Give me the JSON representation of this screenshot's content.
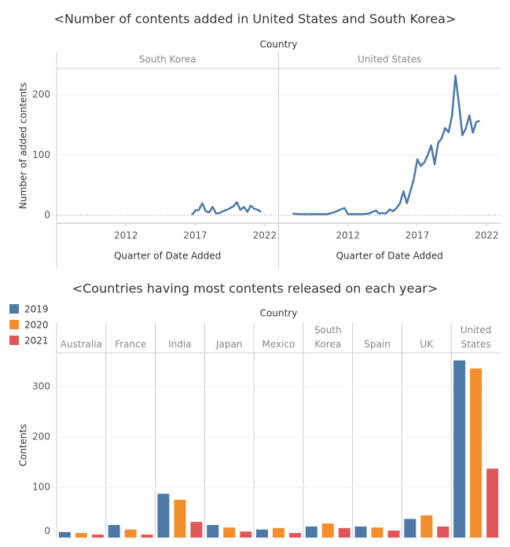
{
  "chart_data": [
    {
      "type": "line",
      "title": "<Number of contents added in United States and South Korea>",
      "facet_label": "Country",
      "x_label": "Quarter of Date Added",
      "y_label": "Number of added contents",
      "color": "#4e79a7",
      "xlim": [
        2007,
        2023
      ],
      "ylim": [
        -13,
        244
      ],
      "xticks": [
        2012,
        2017,
        2022
      ],
      "yticks": [
        0,
        100,
        200
      ],
      "panels": [
        {
          "name": "South Korea",
          "x": [
            2016.75,
            2017.0,
            2017.25,
            2017.5,
            2017.75,
            2018.0,
            2018.25,
            2018.5,
            2018.75,
            2019.0,
            2019.25,
            2019.5,
            2019.75,
            2020.0,
            2020.25,
            2020.5,
            2020.75,
            2021.0,
            2021.25,
            2021.5,
            2021.75
          ],
          "values": [
            1,
            8,
            9,
            20,
            7,
            5,
            14,
            3,
            4,
            7,
            9,
            12,
            15,
            22,
            9,
            14,
            6,
            16,
            11,
            9,
            6
          ]
        },
        {
          "name": "United States",
          "x": [
            2008.0,
            2008.5,
            2009.0,
            2009.5,
            2010.0,
            2010.5,
            2011.0,
            2011.5,
            2011.75,
            2012.0,
            2012.5,
            2013.0,
            2013.5,
            2014.0,
            2014.25,
            2014.5,
            2014.75,
            2015.0,
            2015.25,
            2015.5,
            2015.75,
            2016.0,
            2016.25,
            2016.5,
            2016.75,
            2017.0,
            2017.25,
            2017.5,
            2017.75,
            2018.0,
            2018.25,
            2018.5,
            2018.75,
            2019.0,
            2019.25,
            2019.5,
            2019.75,
            2020.0,
            2020.25,
            2020.5,
            2020.75,
            2021.0,
            2021.25,
            2021.5
          ],
          "values": [
            3,
            2,
            2,
            2,
            2,
            2,
            5,
            10,
            12,
            2,
            2,
            2,
            3,
            8,
            3,
            4,
            3,
            10,
            7,
            12,
            20,
            40,
            20,
            40,
            60,
            93,
            82,
            88,
            100,
            116,
            85,
            120,
            128,
            145,
            138,
            165,
            232,
            185,
            133,
            145,
            166,
            137,
            155,
            157
          ]
        }
      ]
    },
    {
      "type": "bar",
      "title": "<Countries having most contents released on each year>",
      "facet_label": "Country",
      "y_label": "Contents",
      "ylim": [
        0,
        367
      ],
      "yticks": [
        0,
        100,
        200,
        300
      ],
      "categories": [
        "Australia",
        "France",
        "India",
        "Japan",
        "Mexico",
        "South Korea",
        "Spain",
        "UK",
        "United States"
      ],
      "series": [
        {
          "name": "2019",
          "color": "#4e79a7",
          "values": [
            11,
            25,
            87,
            25,
            16,
            22,
            22,
            37,
            352
          ]
        },
        {
          "name": "2020",
          "color": "#f28e2b",
          "values": [
            9,
            16,
            75,
            20,
            19,
            28,
            20,
            44,
            336
          ]
        },
        {
          "name": "2021",
          "color": "#e15759",
          "values": [
            6,
            6,
            31,
            12,
            9,
            19,
            14,
            22,
            137
          ]
        }
      ]
    }
  ]
}
